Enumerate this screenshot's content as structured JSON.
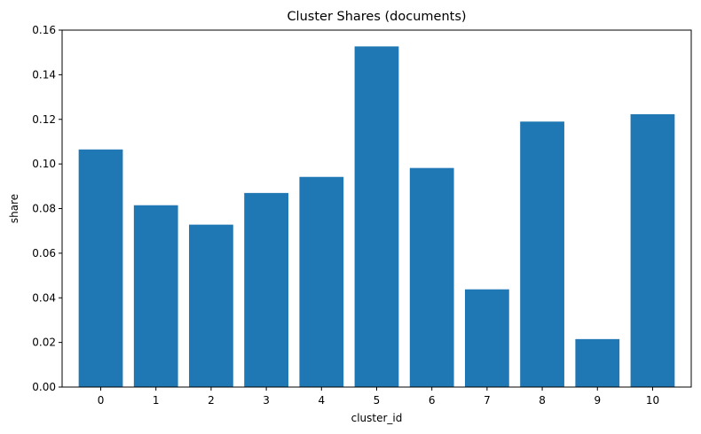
{
  "chart_data": {
    "type": "bar",
    "title": "Cluster Shares (documents)",
    "xlabel": "cluster_id",
    "ylabel": "share",
    "categories": [
      "0",
      "1",
      "2",
      "3",
      "4",
      "5",
      "6",
      "7",
      "8",
      "9",
      "10"
    ],
    "values": [
      0.1065,
      0.0815,
      0.0728,
      0.087,
      0.0942,
      0.1527,
      0.0982,
      0.0438,
      0.119,
      0.0215,
      0.1223
    ],
    "ylim": [
      0,
      0.16
    ],
    "yticks": [
      "0.00",
      "0.02",
      "0.04",
      "0.06",
      "0.08",
      "0.10",
      "0.12",
      "0.14",
      "0.16"
    ],
    "bar_color": "#1f77b4",
    "grid": false,
    "legend": "none"
  }
}
